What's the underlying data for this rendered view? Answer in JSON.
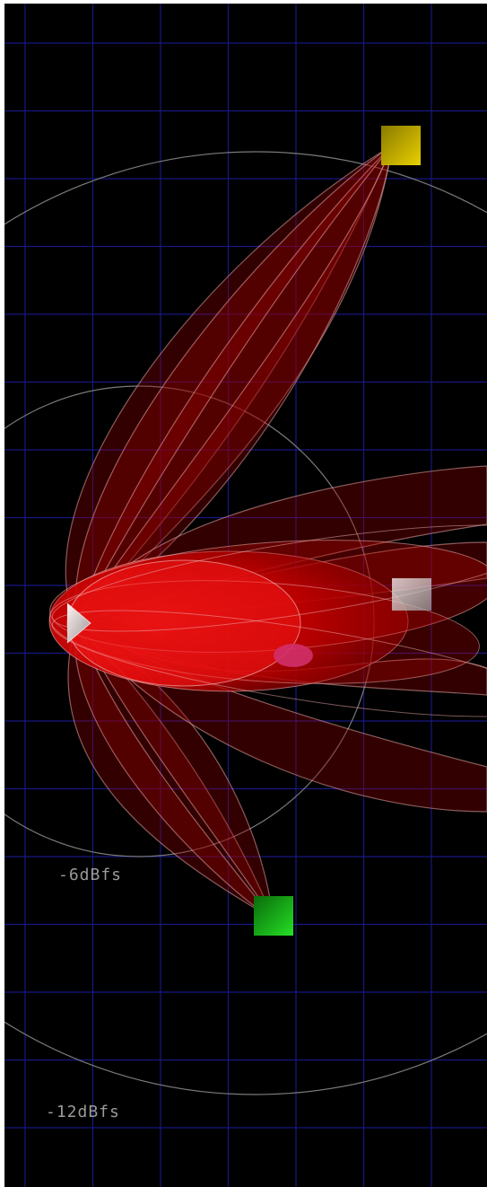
{
  "view": {
    "labels": {
      "ring_6db": "-6dBfs",
      "ring_12db": "-12dBfs"
    }
  },
  "colors": {
    "background": "#000000",
    "grid": "#1a1a8c",
    "ring": "#7a7a7a",
    "lobe_fill": "#b00000",
    "lobe_stroke": "#e6a0a0",
    "source_yellow": "#c8b400",
    "source_green": "#1fd01f",
    "source_white": "#d8d8d8",
    "source_magenta": "#d0306a"
  },
  "icons": {
    "source_yellow": "speaker-yellow-icon",
    "source_green": "speaker-green-icon",
    "source_white_left": "speaker-white-icon",
    "source_white_right": "speaker-white-right-icon",
    "source_magenta": "listener-magenta-icon"
  }
}
